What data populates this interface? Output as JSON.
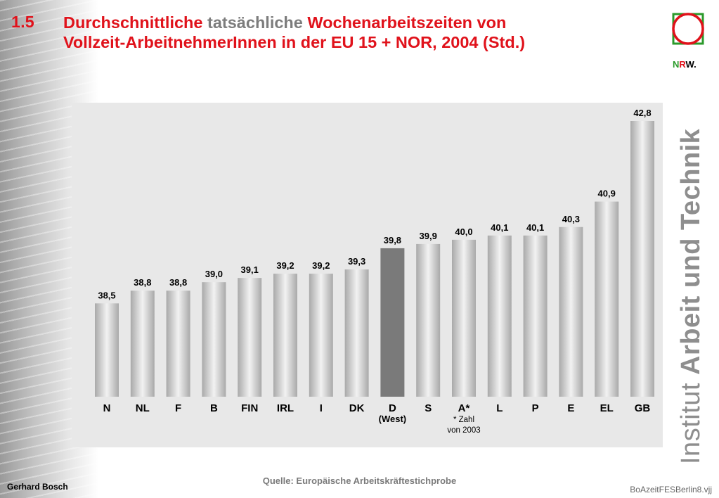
{
  "header": {
    "number": "1.5",
    "title_part1": "Durchschnittliche",
    "title_part2": "tatsächliche",
    "title_part3": "Wochenarbeitszeiten von",
    "title_line2": "Vollzeit-ArbeitnehmerInnen in der EU 15 + NOR, 2004 (Std.)"
  },
  "logo": {
    "letter_n": "N",
    "letter_r": "R",
    "letter_w": "W",
    "dot": "."
  },
  "brand": {
    "light": "Institut ",
    "bold": "Arbeit und Technik"
  },
  "colors": {
    "title_red": "#e0121b",
    "title_grey": "#7d7d7d",
    "bar_highlight": "#7a7a7a",
    "bar_light": "#f2f2f2",
    "bar_dark": "#a9a9a9",
    "panel": "#e8e8e8"
  },
  "chart_data": {
    "type": "bar",
    "categories": [
      "N",
      "NL",
      "F",
      "B",
      "FIN",
      "IRL",
      "I",
      "DK",
      "D",
      "S",
      "A*",
      "L",
      "P",
      "E",
      "EL",
      "GB"
    ],
    "values": [
      38.5,
      38.8,
      38.8,
      39.0,
      39.1,
      39.2,
      39.2,
      39.3,
      39.8,
      39.9,
      40.0,
      40.1,
      40.1,
      40.3,
      40.9,
      42.8
    ],
    "value_labels": [
      "38,5",
      "38,8",
      "38,8",
      "39,0",
      "39,1",
      "39,2",
      "39,2",
      "39,3",
      "39,8",
      "39,9",
      "40,0",
      "40,1",
      "40,1",
      "40,3",
      "40,9",
      "42,8"
    ],
    "highlight_category": "D",
    "category_notes": {
      "D": [
        "(West)"
      ],
      "A*": [
        "* Zahl",
        "von 2003"
      ]
    },
    "title": "",
    "xlabel": "",
    "ylabel": "",
    "grid": false,
    "legend": "none"
  },
  "footer": {
    "source": "Quelle: Europäische Arbeitskräftestichprobe",
    "author": "Gerhard Bosch",
    "filename": "BoAzeitFESBerlin8.vjj"
  }
}
